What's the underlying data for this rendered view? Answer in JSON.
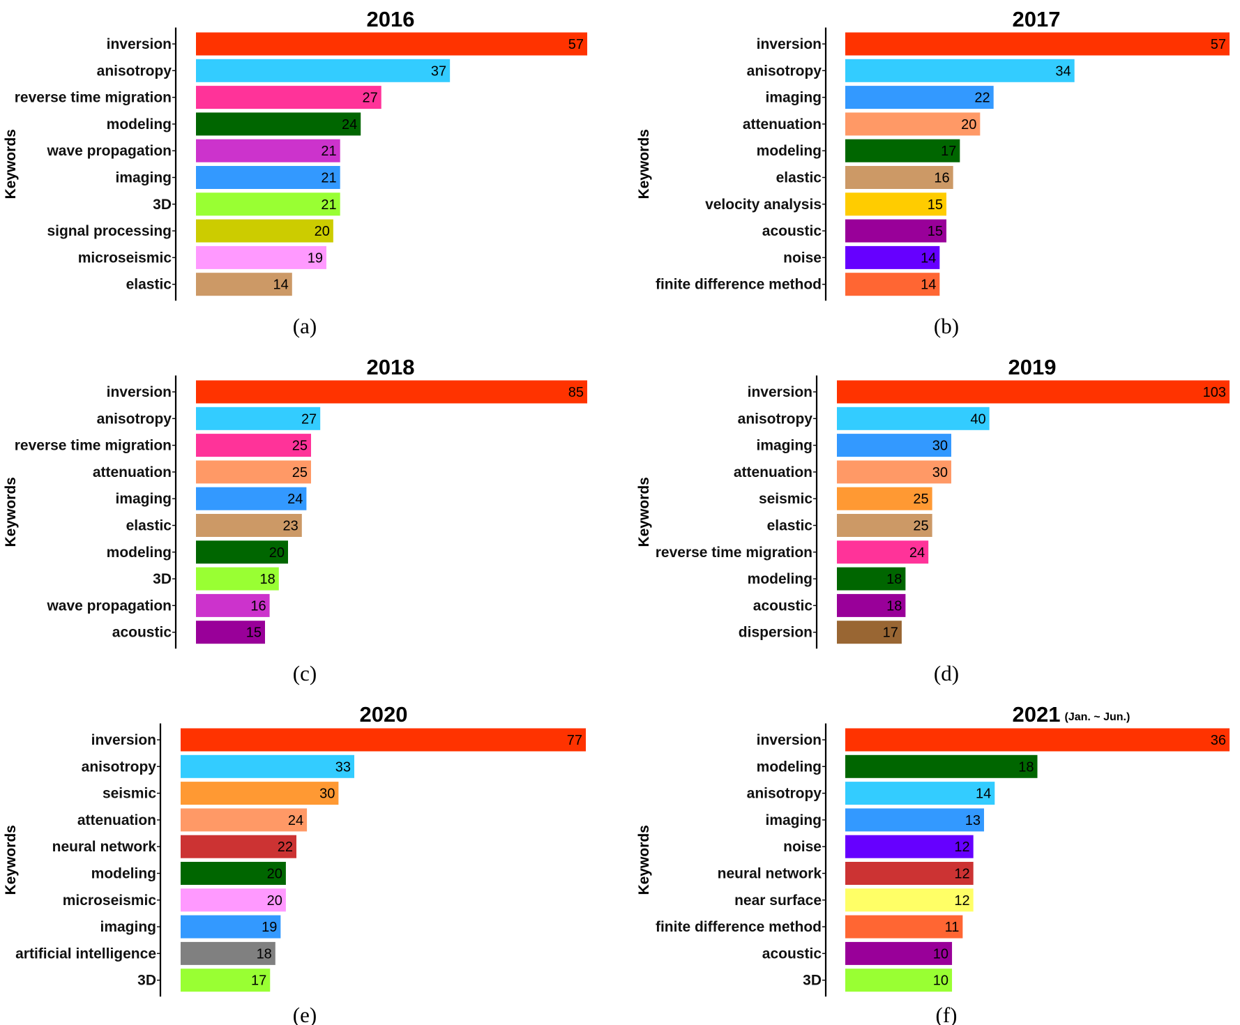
{
  "chart_data": [
    {
      "type": "bar",
      "panel": "(a)",
      "title": "2016",
      "subtitle": "",
      "ylabel": "Keywords",
      "categories": [
        "inversion",
        "anisotropy",
        "reverse time migration",
        "modeling",
        "wave propagation",
        "imaging",
        "3D",
        "signal processing",
        "microseismic",
        "elastic"
      ],
      "values": [
        57,
        37,
        27,
        24,
        21,
        21,
        21,
        20,
        19,
        14
      ],
      "colors": [
        "#ff3300",
        "#33ccff",
        "#ff3399",
        "#006600",
        "#cc33cc",
        "#3399ff",
        "#99ff33",
        "#cccc00",
        "#ff99ff",
        "#cc9966"
      ],
      "xlim": [
        0,
        57
      ]
    },
    {
      "type": "bar",
      "panel": "(b)",
      "title": "2017",
      "subtitle": "",
      "ylabel": "Keywords",
      "categories": [
        "inversion",
        "anisotropy",
        "imaging",
        "attenuation",
        "modeling",
        "elastic",
        "velocity analysis",
        "acoustic",
        "noise",
        "finite difference method"
      ],
      "values": [
        57,
        34,
        22,
        20,
        17,
        16,
        15,
        15,
        14,
        14
      ],
      "colors": [
        "#ff3300",
        "#33ccff",
        "#3399ff",
        "#ff9966",
        "#006600",
        "#cc9966",
        "#ffcc00",
        "#990099",
        "#6600ff",
        "#ff6633"
      ],
      "xlim": [
        0,
        57
      ]
    },
    {
      "type": "bar",
      "panel": "(c)",
      "title": "2018",
      "subtitle": "",
      "ylabel": "Keywords",
      "categories": [
        "inversion",
        "anisotropy",
        "reverse time migration",
        "attenuation",
        "imaging",
        "elastic",
        "modeling",
        "3D",
        "wave propagation",
        "acoustic"
      ],
      "values": [
        85,
        27,
        25,
        25,
        24,
        23,
        20,
        18,
        16,
        15
      ],
      "colors": [
        "#ff3300",
        "#33ccff",
        "#ff3399",
        "#ff9966",
        "#3399ff",
        "#cc9966",
        "#006600",
        "#99ff33",
        "#cc33cc",
        "#990099"
      ],
      "xlim": [
        0,
        85
      ]
    },
    {
      "type": "bar",
      "panel": "(d)",
      "title": "2019",
      "subtitle": "",
      "ylabel": "Keywords",
      "categories": [
        "inversion",
        "anisotropy",
        "imaging",
        "attenuation",
        "seismic",
        "elastic",
        "reverse time migration",
        "modeling",
        "acoustic",
        "dispersion"
      ],
      "values": [
        103,
        40,
        30,
        30,
        25,
        25,
        24,
        18,
        18,
        17
      ],
      "colors": [
        "#ff3300",
        "#33ccff",
        "#3399ff",
        "#ff9966",
        "#ff9933",
        "#cc9966",
        "#ff3399",
        "#006600",
        "#990099",
        "#996633"
      ],
      "xlim": [
        0,
        103
      ]
    },
    {
      "type": "bar",
      "panel": "(e)",
      "title": "2020",
      "subtitle": "",
      "ylabel": "Keywords",
      "categories": [
        "inversion",
        "anisotropy",
        "seismic",
        "attenuation",
        "neural network",
        "modeling",
        "microseismic",
        "imaging",
        "artificial intelligence",
        "3D"
      ],
      "values": [
        77,
        33,
        30,
        24,
        22,
        20,
        20,
        19,
        18,
        17
      ],
      "colors": [
        "#ff3300",
        "#33ccff",
        "#ff9933",
        "#ff9966",
        "#cc3333",
        "#006600",
        "#ff99ff",
        "#3399ff",
        "#808080",
        "#99ff33"
      ],
      "xlim": [
        0,
        77
      ]
    },
    {
      "type": "bar",
      "panel": "(f)",
      "title": "2021",
      "subtitle": "(Jan. ~ Jun.)",
      "ylabel": "Keywords",
      "categories": [
        "inversion",
        "modeling",
        "anisotropy",
        "imaging",
        "noise",
        "neural network",
        "near surface",
        "finite difference method",
        "acoustic",
        "3D"
      ],
      "values": [
        36,
        18,
        14,
        13,
        12,
        12,
        12,
        11,
        10,
        10
      ],
      "colors": [
        "#ff3300",
        "#006600",
        "#33ccff",
        "#3399ff",
        "#6600ff",
        "#cc3333",
        "#ffff66",
        "#ff6633",
        "#990099",
        "#99ff33"
      ],
      "xlim": [
        0,
        36
      ]
    }
  ]
}
